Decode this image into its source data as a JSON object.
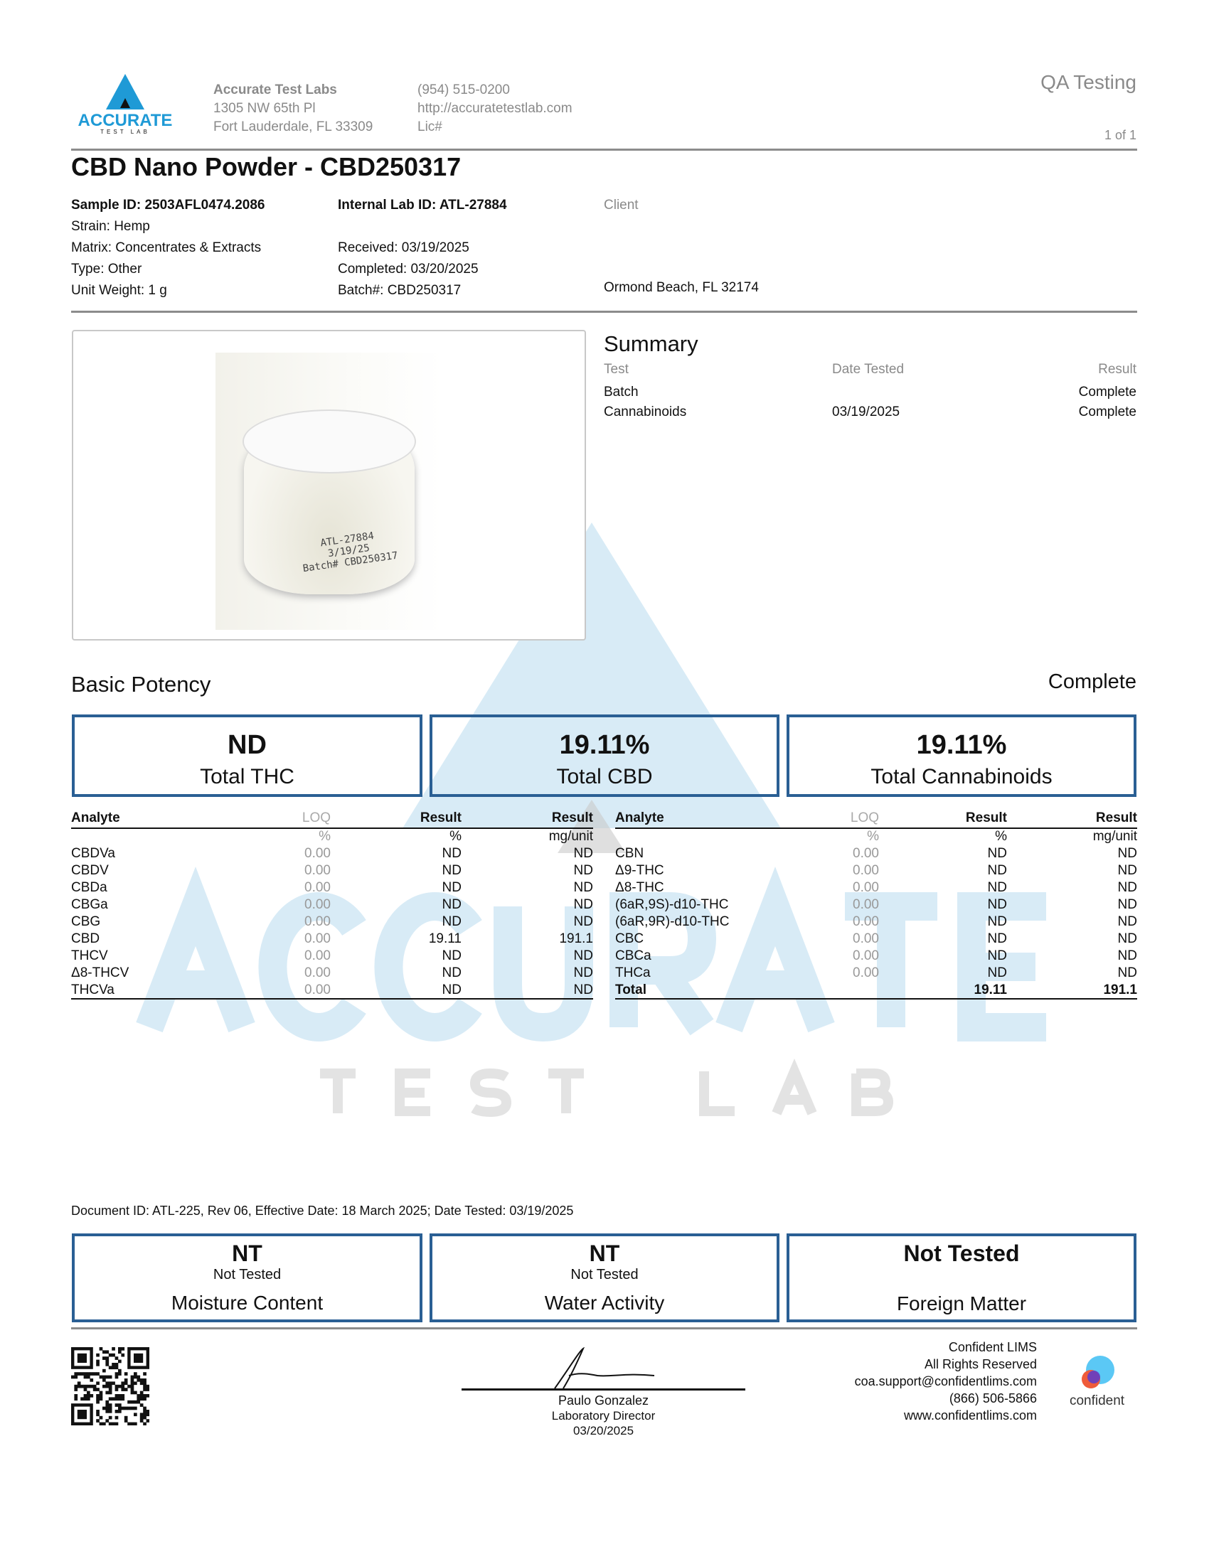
{
  "header": {
    "logo_text": "ACCURATE",
    "logo_sub": "TEST LAB",
    "lab_name": "Accurate Test Labs",
    "address1": "1305 NW 65th Pl",
    "address2": "Fort Lauderdale, FL 33309",
    "phone": "(954) 515-0200",
    "website": "http://accuratetestlab.com",
    "license": "Lic#",
    "doc_type": "QA Testing",
    "page": "1 of 1"
  },
  "title": "CBD Nano Powder - CBD250317",
  "sample": {
    "sample_id": "Sample ID: 2503AFL0474.2086",
    "strain": "Strain: Hemp",
    "matrix": "Matrix: Concentrates & Extracts",
    "type": "Type: Other",
    "unit_weight": "Unit Weight: 1 g",
    "internal_id": "Internal Lab ID: ATL-27884",
    "received": "Received: 03/19/2025",
    "completed": "Completed: 03/20/2025",
    "batch": "Batch#: CBD250317",
    "client_label": "Client",
    "client_city": "Ormond Beach, FL 32174"
  },
  "photo": {
    "label_line1": "ATL-27884",
    "label_line2": "3/19/25",
    "label_line3": "Batch# CBD250317"
  },
  "summary": {
    "title": "Summary",
    "col_test": "Test",
    "col_date": "Date Tested",
    "col_result": "Result",
    "rows": [
      {
        "test": "Batch",
        "date": "",
        "result": "Complete"
      },
      {
        "test": "Cannabinoids",
        "date": "03/19/2025",
        "result": "Complete"
      }
    ]
  },
  "potency": {
    "title": "Basic Potency",
    "status": "Complete",
    "boxes": [
      {
        "value": "ND",
        "label": "Total THC"
      },
      {
        "value": "19.11%",
        "label": "Total CBD"
      },
      {
        "value": "19.11%",
        "label": "Total Cannabinoids"
      }
    ],
    "headers": {
      "analyte": "Analyte",
      "loq": "LOQ",
      "result": "Result",
      "result2": "Result",
      "unit_loq": "%",
      "unit_result": "%",
      "unit_mg": "mg/unit"
    },
    "left": [
      [
        "CBDVa",
        "0.00",
        "ND",
        "ND"
      ],
      [
        "CBDV",
        "0.00",
        "ND",
        "ND"
      ],
      [
        "CBDa",
        "0.00",
        "ND",
        "ND"
      ],
      [
        "CBGa",
        "0.00",
        "ND",
        "ND"
      ],
      [
        "CBG",
        "0.00",
        "ND",
        "ND"
      ],
      [
        "CBD",
        "0.00",
        "19.11",
        "191.1"
      ],
      [
        "THCV",
        "0.00",
        "ND",
        "ND"
      ],
      [
        "Δ8-THCV",
        "0.00",
        "ND",
        "ND"
      ],
      [
        "THCVa",
        "0.00",
        "ND",
        "ND"
      ]
    ],
    "right": [
      [
        "CBN",
        "0.00",
        "ND",
        "ND"
      ],
      [
        "Δ9-THC",
        "0.00",
        "ND",
        "ND"
      ],
      [
        "Δ8-THC",
        "0.00",
        "ND",
        "ND"
      ],
      [
        "(6aR,9S)-d10-THC",
        "0.00",
        "ND",
        "ND"
      ],
      [
        "(6aR,9R)-d10-THC",
        "0.00",
        "ND",
        "ND"
      ],
      [
        "CBC",
        "0.00",
        "ND",
        "ND"
      ],
      [
        "CBCa",
        "0.00",
        "ND",
        "ND"
      ],
      [
        "THCa",
        "0.00",
        "ND",
        "ND"
      ],
      [
        "Total",
        "",
        "19.11",
        "191.1"
      ]
    ]
  },
  "watermark": {
    "big": "ACCURATE",
    "small": "T E S T   L A B"
  },
  "document_id": "Document ID: ATL-225, Rev 06, Effective Date: 18 March 2025; Date Tested: 03/19/2025",
  "other_tests": [
    {
      "value": "NT",
      "sub": "Not Tested",
      "label": "Moisture Content"
    },
    {
      "value": "NT",
      "sub": "Not Tested",
      "label": "Water Activity"
    },
    {
      "value": "Not Tested",
      "sub": "",
      "label": "Foreign Matter"
    }
  ],
  "signature": {
    "name": "Paulo Gonzalez",
    "role": "Laboratory Director",
    "date": "03/20/2025"
  },
  "footer": {
    "line1": "Confident LIMS",
    "line2": "All Rights Reserved",
    "email": "coa.support@confidentlims.com",
    "phone": "(866) 506-5866",
    "web": "www.confidentlims.com",
    "logo_text": "confident"
  },
  "colors": {
    "brand_blue": "#1f9ad6",
    "box_border": "#2a5f94",
    "watermark": "#d8ebf6"
  }
}
